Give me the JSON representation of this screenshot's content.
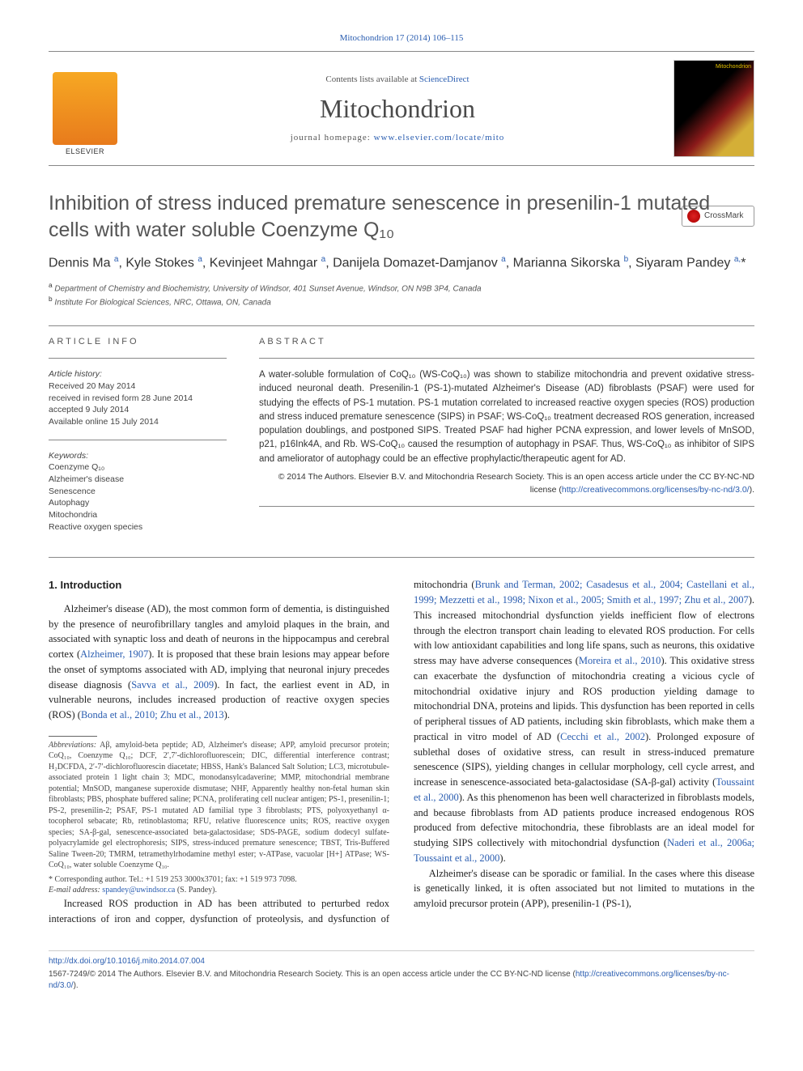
{
  "top_citation": "Mitochondrion 17 (2014) 106–115",
  "header": {
    "contents_label": "Contents lists available at ",
    "contents_link": "ScienceDirect",
    "journal_name": "Mitochondrion",
    "homepage_label": "journal homepage: ",
    "homepage_url": "www.elsevier.com/locate/mito"
  },
  "crossmark_label": "CrossMark",
  "title": "Inhibition of stress induced premature senescence in presenilin-1 mutated cells with water soluble Coenzyme Q₁₀",
  "authors_html": "Dennis Ma <sup>a</sup>, Kyle Stokes <sup>a</sup>, Kevinjeet Mahngar <sup>a</sup>, Danijela Domazet-Damjanov <sup>a</sup>, Marianna Sikorska <sup>b</sup>, Siyaram Pandey <sup>a,</sup>*",
  "affiliations": {
    "a": "Department of Chemistry and Biochemistry, University of Windsor, 401 Sunset Avenue, Windsor, ON N9B 3P4, Canada",
    "b": "Institute For Biological Sciences, NRC, Ottawa, ON, Canada"
  },
  "article_info": {
    "label": "ARTICLE INFO",
    "history_label": "Article history:",
    "history": [
      "Received 20 May 2014",
      "received in revised form 28 June 2014",
      "accepted 9 July 2014",
      "Available online 15 July 2014"
    ],
    "keywords_label": "Keywords:",
    "keywords": [
      "Coenzyme Q₁₀",
      "Alzheimer's disease",
      "Senescence",
      "Autophagy",
      "Mitochondria",
      "Reactive oxygen species"
    ]
  },
  "abstract": {
    "label": "ABSTRACT",
    "text": "A water-soluble formulation of CoQ₁₀ (WS-CoQ₁₀) was shown to stabilize mitochondria and prevent oxidative stress-induced neuronal death. Presenilin-1 (PS-1)-mutated Alzheimer's Disease (AD) fibroblasts (PSAF) were used for studying the effects of PS-1 mutation. PS-1 mutation correlated to increased reactive oxygen species (ROS) production and stress induced premature senescence (SIPS) in PSAF; WS-CoQ₁₀ treatment decreased ROS generation, increased population doublings, and postponed SIPS. Treated PSAF had higher PCNA expression, and lower levels of MnSOD, p21, p16Ink4A, and Rb. WS-CoQ₁₀ caused the resumption of autophagy in PSAF. Thus, WS-CoQ₁₀ as inhibitor of SIPS and ameliorator of autophagy could be an effective prophylactic/therapeutic agent for AD.",
    "copyright": "© 2014 The Authors. Elsevier B.V. and Mitochondria Research Society. This is an open access article under the CC BY-NC-ND license (",
    "license_url": "http://creativecommons.org/licenses/by-nc-nd/3.0/",
    "copyright_close": ")."
  },
  "body": {
    "intro_heading": "1. Introduction",
    "p1": "Alzheimer's disease (AD), the most common form of dementia, is distinguished by the presence of neurofibrillary tangles and amyloid plaques in the brain, and associated with synaptic loss and death of neurons in the hippocampus and cerebral cortex (Alzheimer, 1907). It is proposed that these brain lesions may appear before the onset of symptoms associated with AD, implying that neuronal injury precedes disease diagnosis (Savva et al., 2009). In fact, the earliest event in AD, in vulnerable neurons, includes increased production of reactive oxygen species (ROS) (Bonda et al., 2010; Zhu et al., 2013).",
    "p2": "Increased ROS production in AD has been attributed to perturbed redox interactions of iron and copper, dysfunction of proteolysis, and dysfunction of mitochondria (Brunk and Terman, 2002; Casadesus et al., 2004; Castellani et al., 1999; Mezzetti et al., 1998; Nixon et al., 2005; Smith et al., 1997; Zhu et al., 2007). This increased mitochondrial dysfunction yields inefficient flow of electrons through the electron transport chain leading to elevated ROS production. For cells with low antioxidant capabilities and long life spans, such as neurons, this oxidative stress may have adverse consequences (Moreira et al., 2010). This oxidative stress can exacerbate the dysfunction of mitochondria creating a vicious cycle of mitochondrial oxidative injury and ROS production yielding damage to mitochondrial DNA, proteins and lipids. This dysfunction has been reported in cells of peripheral tissues of AD patients, including skin fibroblasts, which make them a practical in vitro model of AD (Cecchi et al., 2002). Prolonged exposure of sublethal doses of oxidative stress, can result in stress-induced premature senescence (SIPS), yielding changes in cellular morphology, cell cycle arrest, and increase in senescence-associated beta-galactosidase (SA-β-gal) activity (Toussaint et al., 2000). As this phenomenon has been well characterized in fibroblasts models, and because fibroblasts from AD patients produce increased endogenous ROS produced from defective mitochondria, these fibroblasts are an ideal model for studying SIPS collectively with mitochondrial dysfunction (Naderi et al., 2006a; Toussaint et al., 2000).",
    "p3": "Alzheimer's disease can be sporadic or familial. In the cases where this disease is genetically linked, it is often associated but not limited to mutations in the amyloid precursor protein (APP), presenilin-1 (PS-1),"
  },
  "abbreviations": {
    "label": "Abbreviations:",
    "text": "Aβ, amyloid-beta peptide; AD, Alzheimer's disease; APP, amyloid precursor protein; CoQ₁₀, Coenzyme Q₁₀; DCF, 2′,7′-dichlorofluorescein; DIC, differential interference contrast; H₂DCFDA, 2′-7′-dichlorofluorescin diacetate; HBSS, Hank's Balanced Salt Solution; LC3, microtubule-associated protein 1 light chain 3; MDC, monodansylcadaverine; MMP, mitochondrial membrane potential; MnSOD, manganese superoxide dismutase; NHF, Apparently healthy non-fetal human skin fibroblasts; PBS, phosphate buffered saline; PCNA, proliferating cell nuclear antigen; PS-1, presenilin-1; PS-2, presenilin-2; PSAF, PS-1 mutated AD familial type 3 fibroblasts; PTS, polyoxyethanyl α-tocopherol sebacate; Rb, retinoblastoma; RFU, relative fluorescence units; ROS, reactive oxygen species; SA-β-gal, senescence-associated beta-galactosidase; SDS-PAGE, sodium dodecyl sulfate-polyacrylamide gel electrophoresis; SIPS, stress-induced premature senescence; TBST, Tris-Buffered Saline Tween-20; TMRM, tetramethylrhodamine methyl ester; v-ATPase, vacuolar [H+] ATPase; WS-CoQ₁₀, water soluble Coenzyme Q₁₀."
  },
  "correspondence": {
    "line": "* Corresponding author. Tel.: +1 519 253 3000x3701; fax: +1 519 973 7098.",
    "email_label": "E-mail address: ",
    "email": "spandey@uwindsor.ca",
    "email_suffix": " (S. Pandey)."
  },
  "footer": {
    "doi": "http://dx.doi.org/10.1016/j.mito.2014.07.004",
    "issn_line": "1567-7249/© 2014 The Authors. Elsevier B.V. and Mitochondria Research Society. This is an open access article under the CC BY-NC-ND license (",
    "license_url": "http://creativecommons.org/licenses/by-nc-nd/3.0/",
    "close": ")."
  },
  "colors": {
    "link": "#2a5db0",
    "text": "#222222",
    "muted": "#555555",
    "rule": "#888888"
  }
}
